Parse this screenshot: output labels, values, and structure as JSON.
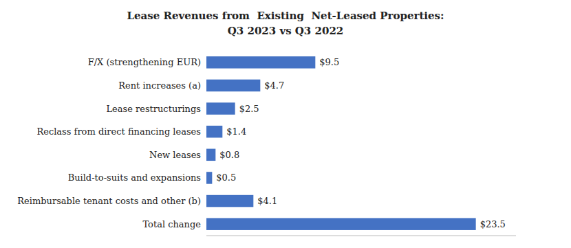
{
  "chart_data": {
    "type": "bar",
    "orientation": "horizontal",
    "title": "Lease Revenues from  Existing  Net-Leased Properties:",
    "subtitle": "Q3 2023 vs Q3 2022",
    "categories": [
      "Total change",
      "Reimbursable tenant costs and other (b)",
      "Build-to-suits and expansions",
      "New leases",
      "Reclass from direct financing leases",
      "Lease restructurings",
      "Rent increases (a)",
      "F/X (strengthening EUR)"
    ],
    "values": [
      23.5,
      4.1,
      0.5,
      0.8,
      1.4,
      2.5,
      4.7,
      9.5
    ],
    "value_labels": [
      "$23.5",
      "$4.1",
      "$0.5",
      "$0.8",
      "$1.4",
      "$2.5",
      "$4.7",
      "$9.5"
    ],
    "data_labels": true,
    "color": "#4472C4",
    "xlim": [
      0,
      27
    ],
    "grid": false,
    "tick_labels": "y"
  }
}
